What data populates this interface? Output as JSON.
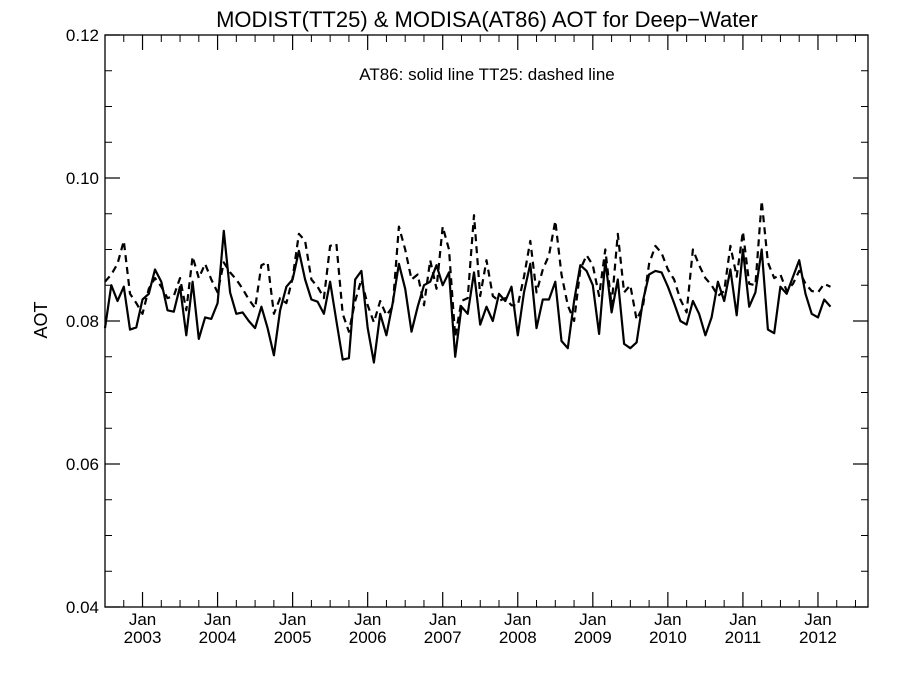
{
  "chart_data": {
    "type": "line",
    "title": "MODIST(TT25) & MODISA(AT86)  AOT for Deep−Water",
    "annotation": "AT86: solid line   TT25: dashed line",
    "xlabel": "",
    "ylabel": "AOT",
    "ylim": [
      0.04,
      0.12
    ],
    "xlim": [
      "2002-07",
      "2012-09"
    ],
    "yticks": [
      "0.04",
      "0.06",
      "0.08",
      "0.10",
      "0.12"
    ],
    "xticks": [
      {
        "month": "Jan",
        "year": "2003"
      },
      {
        "month": "Jan",
        "year": "2004"
      },
      {
        "month": "Jan",
        "year": "2005"
      },
      {
        "month": "Jan",
        "year": "2006"
      },
      {
        "month": "Jan",
        "year": "2007"
      },
      {
        "month": "Jan",
        "year": "2008"
      },
      {
        "month": "Jan",
        "year": "2009"
      },
      {
        "month": "Jan",
        "year": "2010"
      },
      {
        "month": "Jan",
        "year": "2011"
      },
      {
        "month": "Jan",
        "year": "2012"
      }
    ],
    "grid": false,
    "x_start": "2002-07",
    "series": [
      {
        "name": "AT86",
        "style": "solid",
        "color": "#000000",
        "values": [
          0.079,
          0.085,
          0.0828,
          0.0848,
          0.0788,
          0.0791,
          0.083,
          0.0838,
          0.0872,
          0.0855,
          0.0815,
          0.0813,
          0.0848,
          0.078,
          0.0855,
          0.0775,
          0.0805,
          0.0803,
          0.0825,
          0.0926,
          0.084,
          0.081,
          0.0812,
          0.08,
          0.079,
          0.082,
          0.079,
          0.0752,
          0.0815,
          0.0848,
          0.0858,
          0.0898,
          0.0858,
          0.083,
          0.0827,
          0.081,
          0.0855,
          0.08,
          0.0746,
          0.0748,
          0.0858,
          0.087,
          0.079,
          0.0742,
          0.081,
          0.078,
          0.0825,
          0.088,
          0.0845,
          0.0785,
          0.082,
          0.085,
          0.0855,
          0.0878,
          0.085,
          0.0868,
          0.075,
          0.082,
          0.081,
          0.0868,
          0.0795,
          0.082,
          0.08,
          0.0838,
          0.0828,
          0.0848,
          0.078,
          0.084,
          0.088,
          0.079,
          0.083,
          0.083,
          0.0855,
          0.0772,
          0.0762,
          0.0828,
          0.0878,
          0.087,
          0.085,
          0.0782,
          0.0885,
          0.0812,
          0.0858,
          0.0768,
          0.0762,
          0.077,
          0.0828,
          0.0865,
          0.087,
          0.0868,
          0.0848,
          0.0825,
          0.08,
          0.0795,
          0.0828,
          0.081,
          0.078,
          0.0805,
          0.0855,
          0.0828,
          0.0872,
          0.0808,
          0.09,
          0.082,
          0.084,
          0.09,
          0.0788,
          0.0783,
          0.0848,
          0.0838,
          0.0862,
          0.0885,
          0.0838,
          0.081,
          0.0805,
          0.083,
          0.082
        ]
      },
      {
        "name": "TT25",
        "style": "dashed",
        "color": "#000000",
        "values": [
          0.0855,
          0.0865,
          0.088,
          0.0912,
          0.0838,
          0.0825,
          0.081,
          0.0845,
          0.086,
          0.0848,
          0.0832,
          0.0835,
          0.086,
          0.0815,
          0.089,
          0.086,
          0.088,
          0.0858,
          0.084,
          0.0882,
          0.0868,
          0.0858,
          0.0845,
          0.083,
          0.0818,
          0.0878,
          0.0882,
          0.081,
          0.0832,
          0.0825,
          0.086,
          0.0922,
          0.0912,
          0.0858,
          0.0848,
          0.0832,
          0.0905,
          0.0908,
          0.081,
          0.0785,
          0.0828,
          0.0858,
          0.0822,
          0.0798,
          0.0828,
          0.0808,
          0.082,
          0.0932,
          0.09,
          0.0858,
          0.0865,
          0.0822,
          0.0885,
          0.0845,
          0.0932,
          0.09,
          0.0778,
          0.0828,
          0.0832,
          0.0948,
          0.0835,
          0.0885,
          0.0835,
          0.0828,
          0.0832,
          0.0822,
          0.0822,
          0.0862,
          0.0912,
          0.084,
          0.0872,
          0.0892,
          0.094,
          0.0865,
          0.0822,
          0.08,
          0.0872,
          0.0892,
          0.0878,
          0.0835,
          0.09,
          0.0822,
          0.0922,
          0.084,
          0.085,
          0.0802,
          0.082,
          0.088,
          0.0905,
          0.0895,
          0.0872,
          0.0858,
          0.083,
          0.0812,
          0.09,
          0.0878,
          0.086,
          0.085,
          0.0835,
          0.0842,
          0.0905,
          0.0862,
          0.0925,
          0.0852,
          0.085,
          0.0968,
          0.0882,
          0.086,
          0.0865,
          0.0842,
          0.0852,
          0.087,
          0.0852,
          0.0842,
          0.084,
          0.0852,
          0.0848
        ]
      }
    ]
  }
}
